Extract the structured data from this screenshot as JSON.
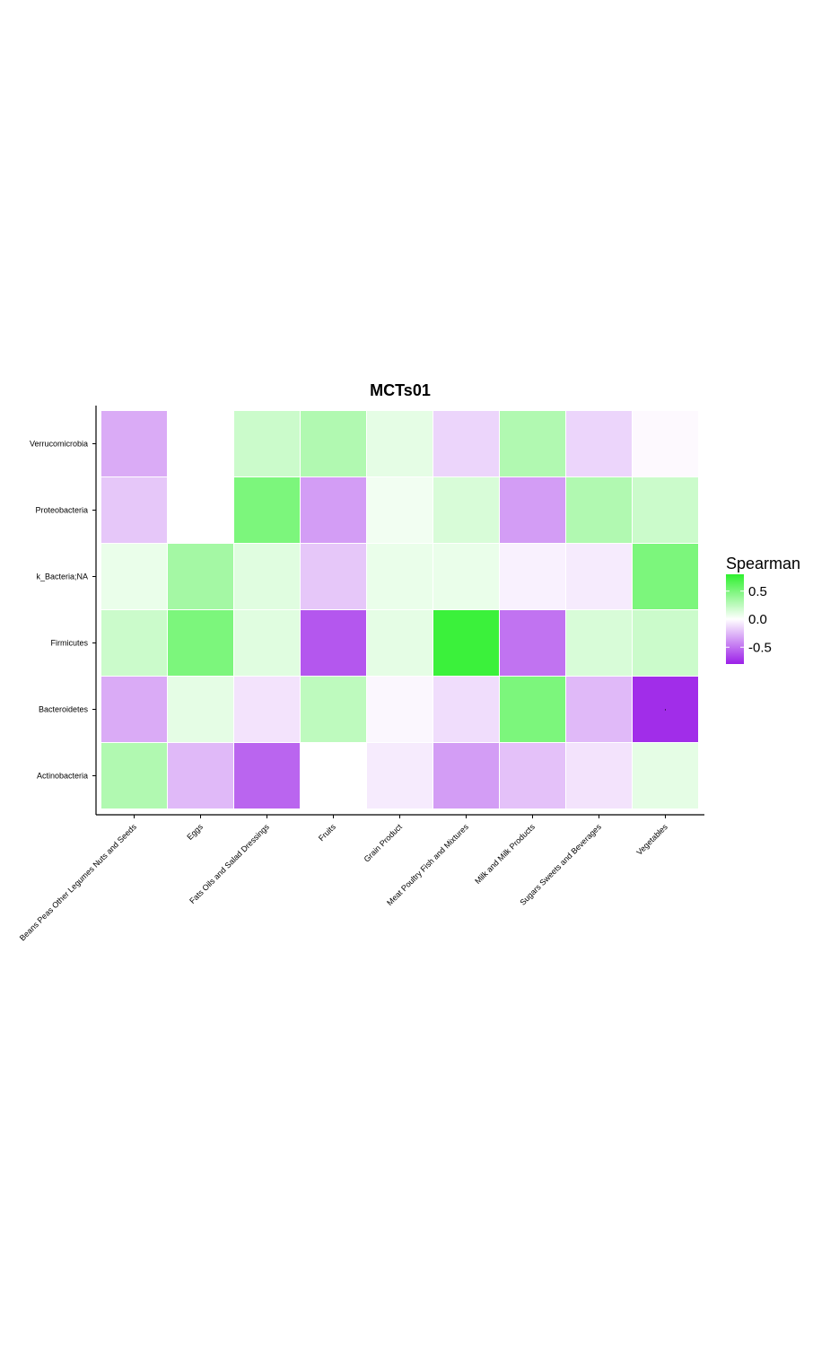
{
  "chart_data": {
    "type": "heatmap",
    "title": "MCTs01",
    "xlabel": "",
    "ylabel": "",
    "x_categories": [
      "Beans Peas Other Legumes Nuts and Seeds",
      "Eggs",
      "Fats Oils and Salad Dressings",
      "Fruits",
      "Grain Product",
      "Meat Poultry Fish and Mixtures",
      "Milk and Milk Products",
      "Sugars Sweets and Beverages",
      "Vegetables"
    ],
    "y_categories": [
      "Verrucomicrobia",
      "Proteobacteria",
      "k_Bacteria;NA",
      "Firmicutes",
      "Bacteroidetes",
      "Actinobacteria"
    ],
    "values": [
      [
        -0.3,
        0.0,
        0.2,
        0.3,
        0.1,
        -0.15,
        0.3,
        -0.15,
        -0.02
      ],
      [
        -0.2,
        0.0,
        0.5,
        -0.35,
        0.05,
        0.15,
        -0.35,
        0.3,
        0.2
      ],
      [
        0.08,
        0.35,
        0.12,
        -0.2,
        0.08,
        0.08,
        -0.05,
        -0.07,
        0.5
      ],
      [
        0.2,
        0.5,
        0.12,
        -0.6,
        0.1,
        0.75,
        -0.5,
        0.15,
        0.2
      ],
      [
        -0.3,
        0.1,
        -0.1,
        0.25,
        -0.03,
        -0.12,
        0.5,
        -0.25,
        -0.75
      ],
      [
        0.3,
        -0.25,
        -0.55,
        0.0,
        -0.07,
        -0.35,
        -0.22,
        -0.1,
        0.1
      ]
    ],
    "color_scale": {
      "low": "#9b1fe8",
      "mid": "#ffffff",
      "high": "#2ef02e",
      "limits": [
        -0.8,
        0.8
      ]
    },
    "legend": {
      "title": "Spearman",
      "labels": [
        "0.5",
        "0.0",
        "-0.5"
      ],
      "label_values": [
        0.5,
        0.0,
        -0.5
      ],
      "position": "right"
    },
    "annotations": [
      {
        "row": "Bacteroidetes",
        "col": "Vegetables",
        "text": "·"
      }
    ]
  }
}
